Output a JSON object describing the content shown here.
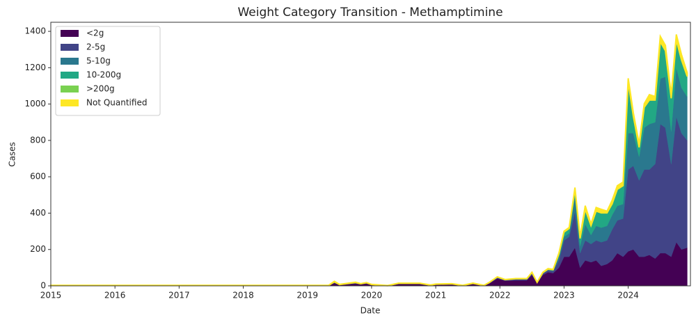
{
  "chart_data": {
    "type": "stacked_area",
    "title": "Weight Category Transition - Methamptimine",
    "xlabel": "Date",
    "ylabel": "Cases",
    "x": [
      2015,
      2019.33,
      2019.42,
      2019.5,
      2019.75,
      2019.83,
      2019.92,
      2020.0,
      2020.25,
      2020.42,
      2020.75,
      2020.92,
      2021.0,
      2021.25,
      2021.42,
      2021.58,
      2021.75,
      2021.83,
      2021.96,
      2022.08,
      2022.25,
      2022.42,
      2022.5,
      2022.58,
      2022.67,
      2022.75,
      2022.83,
      2022.92,
      2023.0,
      2023.08,
      2023.17,
      2023.25,
      2023.33,
      2023.42,
      2023.5,
      2023.58,
      2023.67,
      2023.75,
      2023.83,
      2023.92,
      2024.0,
      2024.08,
      2024.17,
      2024.25,
      2024.33,
      2024.42,
      2024.5,
      2024.58,
      2024.67,
      2024.75,
      2024.83,
      2024.92
    ],
    "series": [
      {
        "name": "<2g",
        "color": "#440154",
        "values": [
          2,
          2,
          15,
          5,
          12,
          8,
          12,
          5,
          1,
          10,
          10,
          3,
          6,
          8,
          2,
          10,
          2,
          12,
          40,
          28,
          30,
          30,
          60,
          15,
          60,
          75,
          70,
          100,
          160,
          160,
          210,
          100,
          140,
          130,
          140,
          110,
          120,
          140,
          180,
          160,
          190,
          200,
          160,
          160,
          170,
          150,
          180,
          180,
          160,
          240,
          200,
          210
        ]
      },
      {
        "name": "2-5g",
        "color": "#414487",
        "values": [
          0,
          0,
          3,
          1,
          3,
          2,
          3,
          1,
          0,
          2,
          2,
          1,
          2,
          2,
          0,
          2,
          0,
          3,
          5,
          4,
          5,
          5,
          8,
          3,
          8,
          10,
          10,
          40,
          90,
          110,
          200,
          80,
          110,
          100,
          110,
          130,
          130,
          170,
          180,
          210,
          450,
          460,
          420,
          480,
          470,
          520,
          710,
          690,
          510,
          690,
          640,
          590
        ]
      },
      {
        "name": "5-10g",
        "color": "#2a788e",
        "values": [
          0,
          0,
          2,
          1,
          2,
          1,
          1,
          1,
          0,
          1,
          1,
          0,
          1,
          1,
          0,
          1,
          0,
          1,
          2,
          1,
          2,
          2,
          3,
          1,
          3,
          4,
          5,
          20,
          20,
          20,
          80,
          40,
          90,
          50,
          80,
          80,
          80,
          80,
          80,
          80,
          200,
          180,
          130,
          230,
          250,
          230,
          250,
          280,
          180,
          270,
          250,
          240
        ]
      },
      {
        "name": "10-200g",
        "color": "#22a884",
        "values": [
          0,
          0,
          2,
          0,
          1,
          0,
          1,
          0,
          0,
          1,
          1,
          0,
          0,
          0,
          0,
          1,
          0,
          1,
          2,
          1,
          2,
          2,
          2,
          0,
          2,
          3,
          3,
          15,
          25,
          25,
          40,
          40,
          80,
          50,
          80,
          80,
          70,
          60,
          90,
          100,
          280,
          90,
          50,
          110,
          130,
          120,
          200,
          140,
          180,
          150,
          150,
          110
        ]
      },
      {
        "name": ">200g",
        "color": "#7ad151",
        "values": [
          0,
          0,
          0,
          0,
          0,
          0,
          0,
          0,
          0,
          0,
          0,
          0,
          0,
          0,
          0,
          0,
          0,
          0,
          0,
          0,
          0,
          0,
          0,
          0,
          0,
          0,
          1,
          1,
          1,
          1,
          1,
          1,
          1,
          1,
          1,
          1,
          1,
          1,
          1,
          1,
          2,
          2,
          2,
          2,
          2,
          2,
          3,
          3,
          2,
          3,
          3,
          2
        ]
      },
      {
        "name": "Not Quantified",
        "color": "#fde725",
        "values": [
          1,
          1,
          3,
          1,
          2,
          1,
          1,
          1,
          1,
          1,
          1,
          1,
          1,
          1,
          1,
          1,
          1,
          1,
          1,
          1,
          1,
          1,
          2,
          1,
          2,
          3,
          2,
          5,
          5,
          5,
          10,
          10,
          20,
          10,
          20,
          20,
          10,
          20,
          20,
          20,
          20,
          20,
          20,
          20,
          30,
          20,
          30,
          30,
          20,
          30,
          30,
          20
        ]
      }
    ],
    "xlim": [
      2015,
      2024.97
    ],
    "xticks": [
      2015,
      2016,
      2017,
      2018,
      2019,
      2020,
      2021,
      2022,
      2023,
      2024
    ],
    "ylim": [
      0,
      1450
    ],
    "yticks": [
      0,
      200,
      400,
      600,
      800,
      1000,
      1200,
      1400
    ],
    "legend": "upper left"
  }
}
